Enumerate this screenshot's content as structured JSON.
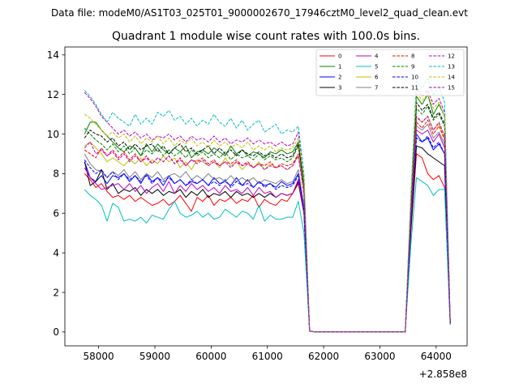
{
  "figure": {
    "suptitle": "Data file: modeM0/AS1T03_025T01_9000002670_17946cztM0_level2_quad_clean.evt"
  },
  "chart_data": {
    "type": "line",
    "title": "Quadrant 1 module wise count rates with 100.0s bins.",
    "xlabel": "",
    "ylabel": "",
    "x_offset_label": "+2.858e8",
    "xlim": [
      57400,
      64550
    ],
    "ylim": [
      -0.7,
      14.4
    ],
    "x_ticks": [
      58000,
      59000,
      60000,
      61000,
      62000,
      63000,
      64000
    ],
    "y_ticks": [
      0,
      2,
      4,
      6,
      8,
      10,
      12,
      14
    ],
    "x_tick_labels": [
      "58000",
      "59000",
      "60000",
      "61000",
      "62000",
      "63000",
      "64000"
    ],
    "y_tick_labels": [
      "0",
      "2",
      "4",
      "6",
      "8",
      "10",
      "12",
      "14"
    ],
    "grid": false,
    "legend": {
      "placement": "top-right",
      "columns": 4
    },
    "x": [
      57750,
      57850,
      57950,
      58050,
      58150,
      58250,
      58350,
      58450,
      58550,
      58650,
      58750,
      58850,
      58950,
      59050,
      59150,
      59250,
      59350,
      59450,
      59550,
      59650,
      59750,
      59850,
      59950,
      60050,
      60150,
      60250,
      60350,
      60450,
      60550,
      60650,
      60750,
      60850,
      60950,
      61050,
      61150,
      61250,
      61350,
      61450,
      61550,
      61650,
      61750,
      61850,
      61950,
      62050,
      62150,
      62250,
      62350,
      62450,
      62550,
      62650,
      62750,
      62850,
      62950,
      63050,
      63150,
      63250,
      63350,
      63450,
      63550,
      63650,
      63750,
      63850,
      63950,
      64050,
      64150,
      64250
    ],
    "series": [
      {
        "name": "0",
        "color": "#ff0000",
        "dash": "solid",
        "values": [
          8.0,
          7.7,
          7.3,
          7.5,
          7.1,
          6.8,
          6.9,
          6.7,
          6.9,
          6.6,
          6.8,
          6.6,
          6.4,
          6.5,
          6.7,
          6.4,
          6.6,
          6.9,
          6.5,
          6.1,
          6.8,
          6.6,
          6.9,
          6.4,
          6.7,
          6.6,
          6.8,
          6.5,
          6.7,
          6.6,
          6.9,
          6.3,
          6.7,
          6.5,
          6.4,
          6.7,
          6.6,
          7.0,
          7.5,
          6.0,
          0.05,
          0.0,
          0.0,
          0.0,
          0.0,
          0.0,
          0.0,
          0.0,
          0.0,
          0.0,
          0.0,
          0.0,
          0.0,
          0.0,
          0.0,
          0.0,
          0.0,
          0.0,
          5.0,
          9.0,
          8.8,
          8.0,
          7.7,
          7.9,
          7.3,
          0.4
        ]
      },
      {
        "name": "1",
        "color": "#008000",
        "dash": "solid",
        "values": [
          10.0,
          10.6,
          10.6,
          10.2,
          9.9,
          9.6,
          9.3,
          9.1,
          9.4,
          9.3,
          8.9,
          9.5,
          9.1,
          9.5,
          9.2,
          9.0,
          9.3,
          9.1,
          9.4,
          8.8,
          9.1,
          9.2,
          9.0,
          9.3,
          9.1,
          8.9,
          9.4,
          9.0,
          9.2,
          8.9,
          9.1,
          9.0,
          8.8,
          9.1,
          9.0,
          9.2,
          9.0,
          9.1,
          9.6,
          7.5,
          0.05,
          0.0,
          0.0,
          0.0,
          0.0,
          0.0,
          0.0,
          0.0,
          0.0,
          0.0,
          0.0,
          0.0,
          0.0,
          0.0,
          0.0,
          0.0,
          0.0,
          0.0,
          6.5,
          11.9,
          11.5,
          12.0,
          11.0,
          11.5,
          10.9,
          0.5
        ]
      },
      {
        "name": "2",
        "color": "#0000ff",
        "dash": "solid",
        "values": [
          8.6,
          7.8,
          7.6,
          7.9,
          7.5,
          7.9,
          7.8,
          8.0,
          7.6,
          7.9,
          7.5,
          8.0,
          7.6,
          7.8,
          7.4,
          7.9,
          7.5,
          7.7,
          7.4,
          7.6,
          7.5,
          7.7,
          7.4,
          7.8,
          7.5,
          7.6,
          7.4,
          7.8,
          7.4,
          7.7,
          7.3,
          7.6,
          7.4,
          7.5,
          7.3,
          7.6,
          7.4,
          7.5,
          8.0,
          6.2,
          0.05,
          0.0,
          0.0,
          0.0,
          0.0,
          0.0,
          0.0,
          0.0,
          0.0,
          0.0,
          0.0,
          0.0,
          0.0,
          0.0,
          0.0,
          0.0,
          0.0,
          0.0,
          5.5,
          10.0,
          9.6,
          9.8,
          9.2,
          9.5,
          9.0,
          0.45
        ]
      },
      {
        "name": "3",
        "color": "#000000",
        "dash": "solid",
        "values": [
          8.6,
          7.4,
          7.6,
          8.2,
          7.2,
          7.5,
          7.0,
          7.2,
          7.1,
          7.3,
          6.9,
          7.2,
          7.0,
          7.2,
          6.9,
          7.1,
          7.0,
          7.2,
          6.8,
          7.1,
          6.9,
          7.2,
          6.8,
          7.0,
          6.9,
          7.1,
          6.8,
          7.1,
          6.9,
          7.0,
          6.8,
          7.0,
          6.8,
          7.0,
          6.8,
          7.0,
          6.9,
          7.0,
          7.6,
          6.0,
          0.05,
          0.0,
          0.0,
          0.0,
          0.0,
          0.0,
          0.0,
          0.0,
          0.0,
          0.0,
          0.0,
          0.0,
          0.0,
          0.0,
          0.0,
          0.0,
          0.0,
          0.0,
          5.2,
          9.4,
          9.3,
          9.0,
          8.8,
          8.6,
          8.4,
          0.4
        ]
      },
      {
        "name": "4",
        "color": "#bf00bf",
        "dash": "solid",
        "values": [
          8.3,
          7.8,
          7.5,
          7.2,
          7.3,
          7.4,
          7.5,
          7.2,
          7.5,
          7.1,
          7.4,
          7.0,
          7.3,
          7.5,
          7.1,
          7.6,
          7.0,
          7.4,
          7.1,
          7.5,
          7.2,
          7.4,
          7.1,
          7.3,
          7.0,
          7.4,
          7.1,
          7.2,
          7.0,
          7.3,
          6.9,
          7.3,
          7.0,
          7.1,
          6.8,
          7.0,
          6.9,
          7.0,
          7.7,
          6.0,
          0.05,
          0.0,
          0.0,
          0.0,
          0.0,
          0.0,
          0.0,
          0.0,
          0.0,
          0.0,
          0.0,
          0.0,
          0.0,
          0.0,
          0.0,
          0.0,
          0.0,
          0.0,
          5.6,
          10.2,
          10.0,
          10.2,
          9.6,
          10.0,
          9.3,
          0.45
        ]
      },
      {
        "name": "5",
        "color": "#00bfbf",
        "dash": "solid",
        "values": [
          7.2,
          6.9,
          6.7,
          6.4,
          5.6,
          6.5,
          6.3,
          5.6,
          5.7,
          5.6,
          5.8,
          5.5,
          5.9,
          5.8,
          5.7,
          6.2,
          6.6,
          6.0,
          5.8,
          5.9,
          6.1,
          5.8,
          6.0,
          5.7,
          5.8,
          6.2,
          6.0,
          5.8,
          6.1,
          6.0,
          5.7,
          6.4,
          5.6,
          5.9,
          5.7,
          5.7,
          5.8,
          5.8,
          6.6,
          5.0,
          0.05,
          0.0,
          0.0,
          0.0,
          0.0,
          0.0,
          0.0,
          0.0,
          0.0,
          0.0,
          0.0,
          0.0,
          0.0,
          0.0,
          0.0,
          0.0,
          0.0,
          0.0,
          4.4,
          7.8,
          7.6,
          7.4,
          6.9,
          7.2,
          7.2,
          0.35
        ]
      },
      {
        "name": "6",
        "color": "#bfbf00",
        "dash": "solid",
        "values": [
          9.4,
          9.6,
          9.3,
          9.0,
          8.6,
          8.8,
          8.6,
          8.4,
          8.7,
          8.5,
          8.8,
          8.4,
          8.7,
          8.5,
          8.9,
          8.6,
          8.8,
          8.3,
          8.6,
          8.2,
          8.7,
          8.6,
          8.4,
          8.6,
          8.3,
          8.8,
          8.4,
          8.6,
          8.2,
          8.5,
          8.3,
          8.6,
          8.2,
          8.5,
          8.3,
          8.4,
          8.2,
          8.4,
          9.0,
          7.0,
          0.05,
          0.0,
          0.0,
          0.0,
          0.0,
          0.0,
          0.0,
          0.0,
          0.0,
          0.0,
          0.0,
          0.0,
          0.0,
          0.0,
          0.0,
          0.0,
          0.0,
          0.0,
          6.0,
          10.8,
          10.6,
          10.9,
          10.2,
          10.5,
          9.8,
          0.5
        ]
      },
      {
        "name": "7",
        "color": "#808080",
        "dash": "solid",
        "values": [
          9.0,
          8.5,
          8.2,
          8.1,
          7.8,
          8.1,
          7.9,
          8.2,
          7.8,
          8.1,
          7.7,
          8.0,
          7.8,
          8.1,
          7.7,
          7.9,
          8.0,
          7.8,
          8.1,
          7.7,
          7.9,
          7.7,
          8.0,
          7.7,
          7.8,
          7.6,
          7.9,
          7.6,
          7.8,
          7.6,
          7.8,
          7.5,
          7.7,
          7.6,
          7.5,
          7.7,
          7.5,
          7.6,
          8.2,
          6.4,
          0.05,
          0.0,
          0.0,
          0.0,
          0.0,
          0.0,
          0.0,
          0.0,
          0.0,
          0.0,
          0.0,
          0.0,
          0.0,
          0.0,
          0.0,
          0.0,
          0.0,
          0.0,
          5.8,
          10.4,
          10.2,
          10.5,
          9.8,
          10.1,
          9.5,
          0.45
        ]
      },
      {
        "name": "8",
        "color": "#ff0000",
        "dash": "dashed",
        "values": [
          9.2,
          9.0,
          8.8,
          9.3,
          8.9,
          9.2,
          8.8,
          9.1,
          8.7,
          9.0,
          8.6,
          8.9,
          8.5,
          8.8,
          8.6,
          8.9,
          8.5,
          8.8,
          8.4,
          8.7,
          8.6,
          8.8,
          8.5,
          8.7,
          8.4,
          8.6,
          8.5,
          8.7,
          8.4,
          8.6,
          8.3,
          8.5,
          8.4,
          8.6,
          8.3,
          8.5,
          8.4,
          8.5,
          9.0,
          7.0,
          0.05,
          0.0,
          0.0,
          0.0,
          0.0,
          0.0,
          0.0,
          0.0,
          0.0,
          0.0,
          0.0,
          0.0,
          0.0,
          0.0,
          0.0,
          0.0,
          0.0,
          0.0,
          6.0,
          10.6,
          10.3,
          10.7,
          10.0,
          10.4,
          9.7,
          0.5
        ]
      },
      {
        "name": "9",
        "color": "#008000",
        "dash": "dashed",
        "values": [
          10.3,
          10.0,
          9.7,
          9.5,
          9.2,
          9.5,
          9.1,
          9.4,
          9.0,
          9.3,
          8.9,
          9.2,
          9.0,
          9.3,
          8.9,
          9.2,
          8.9,
          9.1,
          8.8,
          9.2,
          8.9,
          9.1,
          8.8,
          9.0,
          8.8,
          9.1,
          8.7,
          9.0,
          8.8,
          8.9,
          8.7,
          9.0,
          8.7,
          8.9,
          8.7,
          8.8,
          8.6,
          8.8,
          9.4,
          7.3,
          0.05,
          0.0,
          0.0,
          0.0,
          0.0,
          0.0,
          0.0,
          0.0,
          0.0,
          0.0,
          0.0,
          0.0,
          0.0,
          0.0,
          0.0,
          0.0,
          0.0,
          0.0,
          6.3,
          11.3,
          11.0,
          11.4,
          10.7,
          11.0,
          10.4,
          0.5
        ]
      },
      {
        "name": "10",
        "color": "#0000ff",
        "dash": "dashed",
        "values": [
          8.7,
          8.3,
          8.0,
          8.2,
          7.8,
          8.1,
          7.7,
          8.0,
          7.7,
          7.9,
          7.6,
          7.9,
          7.5,
          7.8,
          7.6,
          7.8,
          7.5,
          7.7,
          7.4,
          7.7,
          7.5,
          7.7,
          7.4,
          7.6,
          7.4,
          7.7,
          7.3,
          7.6,
          7.4,
          7.5,
          7.3,
          7.6,
          7.3,
          7.5,
          7.2,
          7.4,
          7.3,
          7.4,
          7.9,
          6.2,
          0.05,
          0.0,
          0.0,
          0.0,
          0.0,
          0.0,
          0.0,
          0.0,
          0.0,
          0.0,
          0.0,
          0.0,
          0.0,
          0.0,
          0.0,
          0.0,
          0.0,
          0.0,
          5.4,
          9.8,
          9.6,
          9.9,
          9.3,
          9.6,
          9.0,
          0.45
        ]
      },
      {
        "name": "11",
        "color": "#000000",
        "dash": "dashed",
        "values": [
          9.8,
          10.2,
          10.0,
          9.9,
          9.6,
          9.8,
          9.4,
          9.6,
          9.2,
          9.5,
          9.2,
          9.4,
          9.5,
          9.1,
          9.4,
          9.0,
          9.3,
          9.5,
          9.1,
          9.3,
          9.0,
          9.2,
          9.4,
          9.0,
          9.3,
          9.0,
          9.2,
          8.9,
          9.2,
          9.0,
          8.9,
          9.1,
          8.9,
          9.0,
          8.8,
          9.0,
          8.8,
          8.9,
          9.5,
          7.4,
          0.05,
          0.0,
          0.0,
          0.0,
          0.0,
          0.0,
          0.0,
          0.0,
          0.0,
          0.0,
          0.0,
          0.0,
          0.0,
          0.0,
          0.0,
          0.0,
          0.0,
          0.0,
          6.4,
          11.6,
          11.2,
          11.5,
          10.8,
          11.1,
          10.5,
          0.5
        ]
      },
      {
        "name": "12",
        "color": "#bf00bf",
        "dash": "dashed",
        "values": [
          12.1,
          11.8,
          11.4,
          10.9,
          10.6,
          10.3,
          10.0,
          10.2,
          9.9,
          10.1,
          9.8,
          10.0,
          9.7,
          9.9,
          9.8,
          10.0,
          9.7,
          9.9,
          9.6,
          9.9,
          9.7,
          9.8,
          9.6,
          9.9,
          9.6,
          9.8,
          9.5,
          9.7,
          9.6,
          9.8,
          9.5,
          9.7,
          9.5,
          9.6,
          9.4,
          9.6,
          9.4,
          9.5,
          10.1,
          7.9,
          0.05,
          0.0,
          0.0,
          0.0,
          0.0,
          0.0,
          0.0,
          0.0,
          0.0,
          0.0,
          0.0,
          0.0,
          0.0,
          0.0,
          0.0,
          0.0,
          0.0,
          0.0,
          6.8,
          12.3,
          11.9,
          12.2,
          11.5,
          11.8,
          11.1,
          0.55
        ]
      },
      {
        "name": "13",
        "color": "#00bfbf",
        "dash": "dashed",
        "values": [
          12.2,
          11.9,
          11.5,
          11.0,
          10.6,
          11.1,
          10.8,
          10.6,
          10.4,
          11.0,
          10.5,
          10.8,
          10.5,
          11.1,
          10.9,
          11.2,
          10.7,
          10.9,
          10.5,
          10.8,
          10.4,
          10.7,
          10.5,
          11.0,
          10.6,
          10.4,
          10.8,
          10.3,
          10.7,
          10.2,
          10.5,
          10.7,
          10.1,
          10.3,
          10.5,
          10.0,
          10.2,
          10.1,
          10.4,
          8.0,
          0.05,
          0.0,
          0.0,
          0.0,
          0.0,
          0.0,
          0.0,
          0.0,
          0.0,
          0.0,
          0.0,
          0.0,
          0.0,
          0.0,
          0.0,
          0.0,
          0.0,
          0.0,
          7.0,
          12.7,
          12.3,
          12.8,
          12.0,
          12.4,
          11.6,
          0.6
        ]
      },
      {
        "name": "14",
        "color": "#bfbf00",
        "dash": "dashed",
        "values": [
          11.0,
          10.8,
          10.5,
          10.2,
          9.9,
          10.1,
          9.8,
          10.0,
          9.6,
          9.9,
          9.5,
          9.8,
          9.6,
          9.9,
          9.5,
          9.8,
          9.4,
          9.7,
          9.5,
          9.8,
          9.4,
          9.6,
          9.3,
          9.7,
          9.4,
          9.6,
          9.3,
          9.5,
          9.3,
          9.6,
          9.2,
          9.4,
          9.2,
          9.4,
          9.1,
          9.3,
          9.2,
          9.3,
          9.8,
          7.7,
          0.05,
          0.0,
          0.0,
          0.0,
          0.0,
          0.0,
          0.0,
          0.0,
          0.0,
          0.0,
          0.0,
          0.0,
          0.0,
          0.0,
          0.0,
          0.0,
          0.0,
          0.0,
          6.7,
          12.1,
          11.7,
          12.0,
          11.3,
          11.6,
          10.9,
          0.55
        ]
      },
      {
        "name": "15",
        "color": "#bf00bf",
        "dash": "dashed",
        "values": [
          9.3,
          9.6,
          9.0,
          9.2,
          8.9,
          9.1,
          8.7,
          9.0,
          8.6,
          8.9,
          8.6,
          8.8,
          8.5,
          8.8,
          8.6,
          8.9,
          8.5,
          8.7,
          8.4,
          8.7,
          8.5,
          8.7,
          8.4,
          8.6,
          8.4,
          8.6,
          8.3,
          8.6,
          8.4,
          8.5,
          8.3,
          8.5,
          8.2,
          8.4,
          8.3,
          8.4,
          8.2,
          8.4,
          8.9,
          7.0,
          0.05,
          0.0,
          0.0,
          0.0,
          0.0,
          0.0,
          0.0,
          0.0,
          0.0,
          0.0,
          0.0,
          0.0,
          0.0,
          0.0,
          0.0,
          0.0,
          0.0,
          0.0,
          5.9,
          10.9,
          10.6,
          10.9,
          10.2,
          10.6,
          9.9,
          0.5
        ]
      }
    ]
  }
}
